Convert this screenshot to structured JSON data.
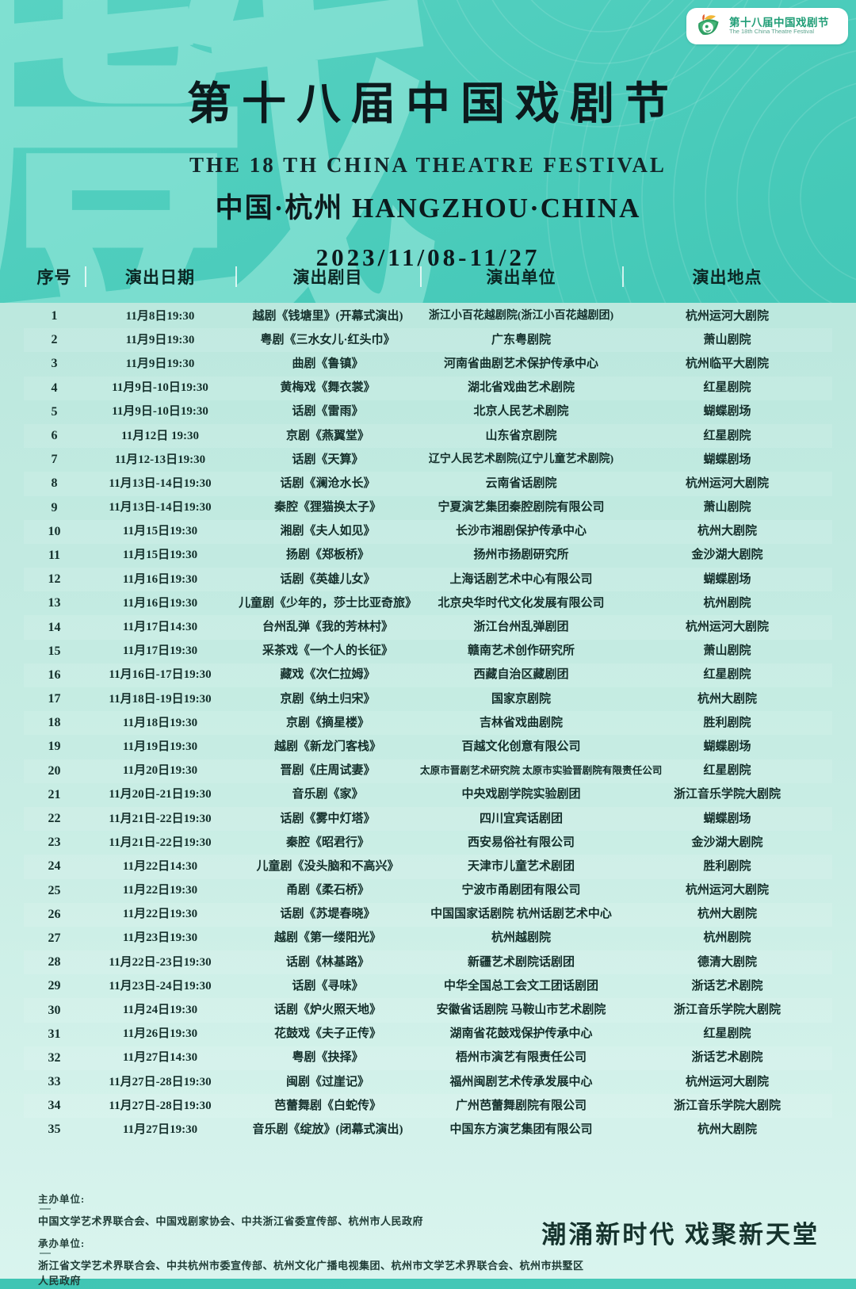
{
  "logo": {
    "title_cn": "第十八届中国戏剧节",
    "title_en": "The 18th China Theatre Festival"
  },
  "header": {
    "watermark": "戲",
    "title": "第十八届中国戏剧节",
    "subtitle_en": "THE 18 TH CHINA THEATRE FESTIVAL",
    "subtitle_cn": "中国·杭州 HANGZHOU·CHINA",
    "date_range": "2023/11/08-11/27"
  },
  "table": {
    "columns": [
      "序号",
      "演出日期",
      "演出剧目",
      "演出单位",
      "演出地点"
    ],
    "rows": [
      [
        "1",
        "11月8日19:30",
        "越剧《钱塘里》(开幕式演出)",
        "浙江小百花越剧院(浙江小百花越剧团)",
        "杭州运河大剧院"
      ],
      [
        "2",
        "11月9日19:30",
        "粤剧《三水女儿·红头巾》",
        "广东粤剧院",
        "萧山剧院"
      ],
      [
        "3",
        "11月9日19:30",
        "曲剧《鲁镇》",
        "河南省曲剧艺术保护传承中心",
        "杭州临平大剧院"
      ],
      [
        "4",
        "11月9日-10日19:30",
        "黄梅戏《舞衣裳》",
        "湖北省戏曲艺术剧院",
        "红星剧院"
      ],
      [
        "5",
        "11月9日-10日19:30",
        "话剧《雷雨》",
        "北京人民艺术剧院",
        "蝴蝶剧场"
      ],
      [
        "6",
        "11月12日 19:30",
        "京剧《燕翼堂》",
        "山东省京剧院",
        "红星剧院"
      ],
      [
        "7",
        "11月12-13日19:30",
        "话剧《天算》",
        "辽宁人民艺术剧院(辽宁儿童艺术剧院)",
        "蝴蝶剧场"
      ],
      [
        "8",
        "11月13日-14日19:30",
        "话剧《澜沧水长》",
        "云南省话剧院",
        "杭州运河大剧院"
      ],
      [
        "9",
        "11月13日-14日19:30",
        "秦腔《狸猫换太子》",
        "宁夏演艺集团秦腔剧院有限公司",
        "萧山剧院"
      ],
      [
        "10",
        "11月15日19:30",
        "湘剧《夫人如见》",
        "长沙市湘剧保护传承中心",
        "杭州大剧院"
      ],
      [
        "11",
        "11月15日19:30",
        "扬剧《郑板桥》",
        "扬州市扬剧研究所",
        "金沙湖大剧院"
      ],
      [
        "12",
        "11月16日19:30",
        "话剧《英雄儿女》",
        "上海话剧艺术中心有限公司",
        "蝴蝶剧场"
      ],
      [
        "13",
        "11月16日19:30",
        "儿童剧《少年的，莎士比亚奇旅》",
        "北京央华时代文化发展有限公司",
        "杭州剧院"
      ],
      [
        "14",
        "11月17日14:30",
        "台州乱弹《我的芳林村》",
        "浙江台州乱弹剧团",
        "杭州运河大剧院"
      ],
      [
        "15",
        "11月17日19:30",
        "采茶戏《一个人的长征》",
        "赣南艺术创作研究所",
        "萧山剧院"
      ],
      [
        "16",
        "11月16日-17日19:30",
        "藏戏《次仁拉姆》",
        "西藏自治区藏剧团",
        "红星剧院"
      ],
      [
        "17",
        "11月18日-19日19:30",
        "京剧《纳土归宋》",
        "国家京剧院",
        "杭州大剧院"
      ],
      [
        "18",
        "11月18日19:30",
        "京剧《摘星楼》",
        "吉林省戏曲剧院",
        "胜利剧院"
      ],
      [
        "19",
        "11月19日19:30",
        "越剧《新龙门客栈》",
        "百越文化创意有限公司",
        "蝴蝶剧场"
      ],
      [
        "20",
        "11月20日19:30",
        "晋剧《庄周试妻》",
        "太原市晋剧艺术研究院 太原市实验晋剧院有限责任公司",
        "红星剧院"
      ],
      [
        "21",
        "11月20日-21日19:30",
        "音乐剧《家》",
        "中央戏剧学院实验剧团",
        "浙江音乐学院大剧院"
      ],
      [
        "22",
        "11月21日-22日19:30",
        "话剧《雾中灯塔》",
        "四川宜宾话剧团",
        "蝴蝶剧场"
      ],
      [
        "23",
        "11月21日-22日19:30",
        "秦腔《昭君行》",
        "西安易俗社有限公司",
        "金沙湖大剧院"
      ],
      [
        "24",
        "11月22日14:30",
        "儿童剧《没头脑和不高兴》",
        "天津市儿童艺术剧团",
        "胜利剧院"
      ],
      [
        "25",
        "11月22日19:30",
        "甬剧《柔石桥》",
        "宁波市甬剧团有限公司",
        "杭州运河大剧院"
      ],
      [
        "26",
        "11月22日19:30",
        "话剧《苏堤春晓》",
        "中国国家话剧院 杭州话剧艺术中心",
        "杭州大剧院"
      ],
      [
        "27",
        "11月23日19:30",
        "越剧《第一缕阳光》",
        "杭州越剧院",
        "杭州剧院"
      ],
      [
        "28",
        "11月22日-23日19:30",
        "话剧《林基路》",
        "新疆艺术剧院话剧团",
        "德清大剧院"
      ],
      [
        "29",
        "11月23日-24日19:30",
        "话剧《寻味》",
        "中华全国总工会文工团话剧团",
        "浙话艺术剧院"
      ],
      [
        "30",
        "11月24日19:30",
        "话剧《炉火照天地》",
        "安徽省话剧院 马鞍山市艺术剧院",
        "浙江音乐学院大剧院"
      ],
      [
        "31",
        "11月26日19:30",
        "花鼓戏《夫子正传》",
        "湖南省花鼓戏保护传承中心",
        "红星剧院"
      ],
      [
        "32",
        "11月27日14:30",
        "粤剧《抉择》",
        "梧州市演艺有限责任公司",
        "浙话艺术剧院"
      ],
      [
        "33",
        "11月27日-28日19:30",
        "闽剧《过崖记》",
        "福州闽剧艺术传承发展中心",
        "杭州运河大剧院"
      ],
      [
        "34",
        "11月27日-28日19:30",
        "芭蕾舞剧《白蛇传》",
        "广州芭蕾舞剧院有限公司",
        "浙江音乐学院大剧院"
      ],
      [
        "35",
        "11月27日19:30",
        "音乐剧《绽放》(闭幕式演出)",
        "中国东方演艺集团有限公司",
        "杭州大剧院"
      ]
    ]
  },
  "footer": {
    "host_label": "主办单位:",
    "hosts": "中国文学艺术界联合会、中国戏剧家协会、中共浙江省委宣传部、杭州市人民政府",
    "organizer_label": "承办单位:",
    "organizers": "浙江省文学艺术界联合会、中共杭州市委宣传部、杭州文化广播电视集团、杭州市文学艺术界联合会、杭州市拱墅区人民政府",
    "slogan": "潮涌新时代 戏聚新天堂"
  },
  "colors": {
    "teal_background": "#41c6b5",
    "mint_panel": "#c6ece3",
    "ink": "#0f2d28",
    "logo_green": "#1f9d76",
    "logo_yellow": "#f2b636",
    "logo_red": "#e05a2b",
    "white": "#ffffff"
  }
}
